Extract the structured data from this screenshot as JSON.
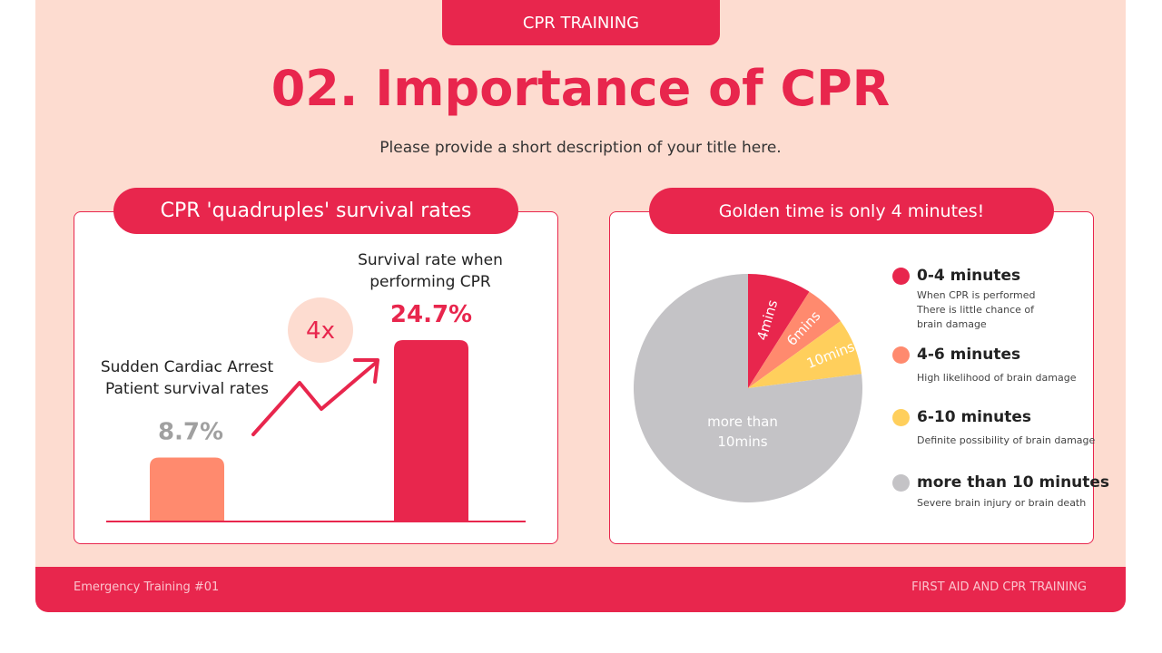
{
  "header": {
    "tab": "CPR TRAINING",
    "title": "02. Importance of CPR",
    "subtitle": "Please provide a short description of your title here."
  },
  "left_panel": {
    "title": "CPR 'quadruples' survival rates",
    "multiplier": "4x"
  },
  "right_panel": {
    "title": "Golden time is only 4 minutes!"
  },
  "legend": [
    {
      "title": "0-4 minutes",
      "desc": "When CPR is performed\nThere is little chance of brain damage",
      "color": "#e8264d"
    },
    {
      "title": "4-6 minutes",
      "desc": "High likelihood of brain damage",
      "color": "#ff8a6e"
    },
    {
      "title": "6-10 minutes",
      "desc": "Definite possibility of brain damage",
      "color": "#ffcf5c"
    },
    {
      "title": "more than 10 minutes",
      "desc": "Severe brain injury or brain death",
      "color": "#c4c3c6"
    }
  ],
  "footer": {
    "left": "Emergency Training #01",
    "right": "FIRST AID AND CPR TRAINING"
  },
  "chart_data": [
    {
      "type": "bar",
      "categories": [
        "Sudden Cardiac Arrest Patient survival rates",
        "Survival rate when performing CPR"
      ],
      "values": [
        8.7,
        24.7
      ],
      "data_labels": [
        "8.7%",
        "24.7%"
      ],
      "colors": [
        "#ff8a6e",
        "#e8264d"
      ],
      "label_colors": [
        "#a0a0a0",
        "#e8264d"
      ]
    },
    {
      "type": "pie",
      "labels": [
        "4mins",
        "6mins",
        "10mins",
        "more than 10mins"
      ],
      "values": [
        9,
        6,
        8,
        77
      ],
      "colors": [
        "#e8264d",
        "#ff8a6e",
        "#ffcf5c",
        "#c4c3c6"
      ]
    }
  ]
}
